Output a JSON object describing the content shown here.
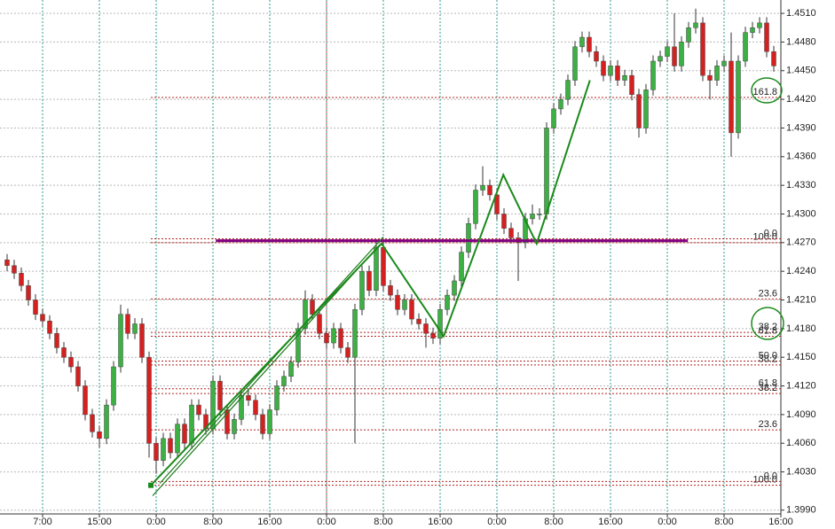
{
  "chart_data": {
    "type": "candlestick",
    "up_color": "#3cb043",
    "down_color": "#d62020",
    "xlim": [
      -1,
      109
    ],
    "ylim": [
      1.3986,
      1.4524
    ],
    "xticks": [
      {
        "value": 5,
        "label": "7:00"
      },
      {
        "value": 13,
        "label": "15:00"
      },
      {
        "value": 21,
        "label": "0:00"
      },
      {
        "value": 29,
        "label": "8:00"
      },
      {
        "value": 37,
        "label": "16:00"
      },
      {
        "value": 45,
        "label": "0:00"
      },
      {
        "value": 53,
        "label": "8:00"
      },
      {
        "value": 61,
        "label": "16:00"
      },
      {
        "value": 69,
        "label": "0:00"
      },
      {
        "value": 77,
        "label": "8:00"
      },
      {
        "value": 85,
        "label": "16:00"
      },
      {
        "value": 93,
        "label": "0:00"
      },
      {
        "value": 101,
        "label": "8:00"
      },
      {
        "value": 109,
        "label": "16:00"
      }
    ],
    "yticks": [
      {
        "value": 1.451,
        "label": "1.4510"
      },
      {
        "value": 1.448,
        "label": "1.4480"
      },
      {
        "value": 1.445,
        "label": "1.4450"
      },
      {
        "value": 1.442,
        "label": "1.4420"
      },
      {
        "value": 1.439,
        "label": "1.4390"
      },
      {
        "value": 1.436,
        "label": "1.4360"
      },
      {
        "value": 1.433,
        "label": "1.4330"
      },
      {
        "value": 1.43,
        "label": "1.4300"
      },
      {
        "value": 1.427,
        "label": "1.4270"
      },
      {
        "value": 1.424,
        "label": "1.4240"
      },
      {
        "value": 1.421,
        "label": "1.4210"
      },
      {
        "value": 1.418,
        "label": "1.4180"
      },
      {
        "value": 1.415,
        "label": "1.4150"
      },
      {
        "value": 1.412,
        "label": "1.4120"
      },
      {
        "value": 1.409,
        "label": "1.4090"
      },
      {
        "value": 1.406,
        "label": "1.4060"
      },
      {
        "value": 1.403,
        "label": "1.4030"
      },
      {
        "value": 1.399,
        "label": "1.3990"
      }
    ],
    "grid": true,
    "candles": [
      [
        1.4252,
        1.4258,
        1.424,
        1.4246
      ],
      [
        1.4246,
        1.4252,
        1.4232,
        1.4238
      ],
      [
        1.4238,
        1.4244,
        1.4219,
        1.4225
      ],
      [
        1.4225,
        1.4231,
        1.4204,
        1.421
      ],
      [
        1.421,
        1.4216,
        1.4189,
        1.4195
      ],
      [
        1.4195,
        1.4201,
        1.4182,
        1.4188
      ],
      [
        1.4188,
        1.4194,
        1.4169,
        1.4175
      ],
      [
        1.4175,
        1.4181,
        1.4154,
        1.416
      ],
      [
        1.416,
        1.4166,
        1.4144,
        1.415
      ],
      [
        1.415,
        1.4156,
        1.4134,
        1.414
      ],
      [
        1.414,
        1.4146,
        1.4114,
        1.412
      ],
      [
        1.412,
        1.4126,
        1.4084,
        1.409
      ],
      [
        1.409,
        1.4096,
        1.4066,
        1.4072
      ],
      [
        1.4072,
        1.4078,
        1.4055,
        1.4065
      ],
      [
        1.4065,
        1.4106,
        1.4059,
        1.41
      ],
      [
        1.41,
        1.4146,
        1.4094,
        1.414
      ],
      [
        1.414,
        1.4205,
        1.4134,
        1.4195
      ],
      [
        1.4195,
        1.4201,
        1.4169,
        1.4175
      ],
      [
        1.4175,
        1.4191,
        1.4169,
        1.4185
      ],
      [
        1.4185,
        1.4191,
        1.4144,
        1.415
      ],
      [
        1.415,
        1.4156,
        1.4045,
        1.406
      ],
      [
        1.406,
        1.4066,
        1.4028,
        1.4042
      ],
      [
        1.4042,
        1.4071,
        1.4036,
        1.4065
      ],
      [
        1.4065,
        1.4071,
        1.4044,
        1.405
      ],
      [
        1.405,
        1.4086,
        1.4044,
        1.408
      ],
      [
        1.408,
        1.4086,
        1.4054,
        1.406
      ],
      [
        1.406,
        1.4106,
        1.4054,
        1.41
      ],
      [
        1.41,
        1.4106,
        1.4084,
        1.409
      ],
      [
        1.409,
        1.4096,
        1.4069,
        1.4075
      ],
      [
        1.4075,
        1.4131,
        1.4069,
        1.4125
      ],
      [
        1.4125,
        1.4131,
        1.4089,
        1.4095
      ],
      [
        1.4095,
        1.4101,
        1.4064,
        1.407
      ],
      [
        1.407,
        1.4091,
        1.4064,
        1.4085
      ],
      [
        1.4085,
        1.4116,
        1.4079,
        1.411
      ],
      [
        1.411,
        1.4116,
        1.4099,
        1.4105
      ],
      [
        1.4105,
        1.4111,
        1.4084,
        1.409
      ],
      [
        1.409,
        1.4096,
        1.4064,
        1.407
      ],
      [
        1.407,
        1.4101,
        1.4064,
        1.4095
      ],
      [
        1.4095,
        1.4126,
        1.4089,
        1.412
      ],
      [
        1.412,
        1.4136,
        1.4114,
        1.413
      ],
      [
        1.413,
        1.4151,
        1.4124,
        1.4145
      ],
      [
        1.4145,
        1.4186,
        1.4139,
        1.418
      ],
      [
        1.418,
        1.422,
        1.4174,
        1.421
      ],
      [
        1.421,
        1.4216,
        1.4189,
        1.4195
      ],
      [
        1.4195,
        1.4201,
        1.4169,
        1.4175
      ],
      [
        1.4175,
        1.4181,
        1.4159,
        1.4165
      ],
      [
        1.4165,
        1.4186,
        1.4159,
        1.418
      ],
      [
        1.418,
        1.4186,
        1.4154,
        1.416
      ],
      [
        1.416,
        1.4166,
        1.4144,
        1.415
      ],
      [
        1.415,
        1.4206,
        1.406,
        1.42
      ],
      [
        1.42,
        1.4246,
        1.4194,
        1.424
      ],
      [
        1.424,
        1.4246,
        1.4214,
        1.422
      ],
      [
        1.422,
        1.4271,
        1.4214,
        1.4265
      ],
      [
        1.4265,
        1.4271,
        1.4219,
        1.4225
      ],
      [
        1.4225,
        1.4231,
        1.4209,
        1.4215
      ],
      [
        1.4215,
        1.4221,
        1.4194,
        1.42
      ],
      [
        1.42,
        1.4216,
        1.4194,
        1.421
      ],
      [
        1.421,
        1.4216,
        1.4184,
        1.419
      ],
      [
        1.419,
        1.4196,
        1.4179,
        1.4185
      ],
      [
        1.4185,
        1.4191,
        1.416,
        1.4175
      ],
      [
        1.4175,
        1.4181,
        1.4164,
        1.417
      ],
      [
        1.417,
        1.4206,
        1.4164,
        1.42
      ],
      [
        1.42,
        1.4221,
        1.4194,
        1.4215
      ],
      [
        1.4215,
        1.4236,
        1.4209,
        1.423
      ],
      [
        1.423,
        1.4266,
        1.4224,
        1.426
      ],
      [
        1.426,
        1.4296,
        1.4254,
        1.429
      ],
      [
        1.429,
        1.4331,
        1.4284,
        1.4325
      ],
      [
        1.4325,
        1.435,
        1.4319,
        1.433
      ],
      [
        1.433,
        1.4336,
        1.4314,
        1.432
      ],
      [
        1.432,
        1.4326,
        1.4294,
        1.43
      ],
      [
        1.43,
        1.4306,
        1.4279,
        1.4285
      ],
      [
        1.4285,
        1.4291,
        1.4269,
        1.4275
      ],
      [
        1.4275,
        1.4281,
        1.423,
        1.427
      ],
      [
        1.427,
        1.4301,
        1.4264,
        1.4295
      ],
      [
        1.4295,
        1.431,
        1.4289,
        1.43
      ],
      [
        1.43,
        1.4306,
        1.4294,
        1.43
      ],
      [
        1.43,
        1.4396,
        1.4294,
        1.439
      ],
      [
        1.439,
        1.4416,
        1.4384,
        1.441
      ],
      [
        1.441,
        1.4426,
        1.4404,
        1.442
      ],
      [
        1.442,
        1.4446,
        1.4414,
        1.444
      ],
      [
        1.444,
        1.4481,
        1.4434,
        1.4475
      ],
      [
        1.4475,
        1.4491,
        1.4469,
        1.4485
      ],
      [
        1.4485,
        1.4491,
        1.4464,
        1.447
      ],
      [
        1.447,
        1.4476,
        1.4454,
        1.446
      ],
      [
        1.446,
        1.4466,
        1.4439,
        1.4445
      ],
      [
        1.4445,
        1.4461,
        1.4439,
        1.4455
      ],
      [
        1.4455,
        1.4461,
        1.4434,
        1.444
      ],
      [
        1.444,
        1.4451,
        1.4434,
        1.4445
      ],
      [
        1.4445,
        1.4451,
        1.4419,
        1.4425
      ],
      [
        1.4425,
        1.4431,
        1.438,
        1.439
      ],
      [
        1.439,
        1.4436,
        1.4384,
        1.443
      ],
      [
        1.443,
        1.4466,
        1.4424,
        1.446
      ],
      [
        1.446,
        1.4471,
        1.4454,
        1.4465
      ],
      [
        1.4465,
        1.4481,
        1.4459,
        1.4475
      ],
      [
        1.4475,
        1.451,
        1.4449,
        1.4455
      ],
      [
        1.4455,
        1.4486,
        1.4449,
        1.448
      ],
      [
        1.448,
        1.4501,
        1.4474,
        1.4495
      ],
      [
        1.4495,
        1.4515,
        1.4489,
        1.45
      ],
      [
        1.45,
        1.4506,
        1.4439,
        1.4445
      ],
      [
        1.4445,
        1.4451,
        1.442,
        1.444
      ],
      [
        1.444,
        1.4461,
        1.4434,
        1.4455
      ],
      [
        1.4455,
        1.4466,
        1.4449,
        1.446
      ],
      [
        1.446,
        1.449,
        1.436,
        1.4385
      ],
      [
        1.4385,
        1.4466,
        1.4379,
        1.446
      ],
      [
        1.446,
        1.4496,
        1.4454,
        1.449
      ],
      [
        1.449,
        1.4501,
        1.4484,
        1.4495
      ],
      [
        1.4495,
        1.4506,
        1.4489,
        1.45
      ],
      [
        1.45,
        1.4506,
        1.4464,
        1.447
      ],
      [
        1.447,
        1.4476,
        1.4449,
        1.4455
      ]
    ],
    "levels": [
      {
        "value": 1.4422,
        "label": "161.8"
      },
      {
        "value": 1.427,
        "label": "100.0"
      },
      {
        "value": 1.4274,
        "label": "0.0"
      },
      {
        "value": 1.4211,
        "label": "23.6"
      },
      {
        "value": 1.4176,
        "label": "38.2"
      },
      {
        "value": 1.4172,
        "label": "61.8"
      },
      {
        "value": 1.4146,
        "label": "50.0"
      },
      {
        "value": 1.4142,
        "label": "38.2"
      },
      {
        "value": 1.4117,
        "label": "61.8"
      },
      {
        "value": 1.4112,
        "label": "38.2"
      },
      {
        "value": 1.4074,
        "label": "23.6"
      },
      {
        "value": 1.4016,
        "label": "100.0"
      },
      {
        "value": 1.402,
        "label": "0.0"
      }
    ],
    "pivot_line": {
      "x": [
        29.4,
        95.9
      ],
      "value": 1.4272
    },
    "zigzag": {
      "x": [
        20.25,
        52.75,
        61.5,
        69.9,
        74.6,
        82.1
      ],
      "y": [
        1.4016,
        1.4269,
        1.4172,
        1.4341,
        1.4269,
        1.444
      ]
    },
    "channel": [
      {
        "x": [
          20.5,
          52.5
        ],
        "y": [
          1.4005,
          1.4268
        ]
      },
      {
        "x": [
          21.5,
          53
        ],
        "y": [
          1.4018,
          1.4276
        ]
      }
    ]
  }
}
